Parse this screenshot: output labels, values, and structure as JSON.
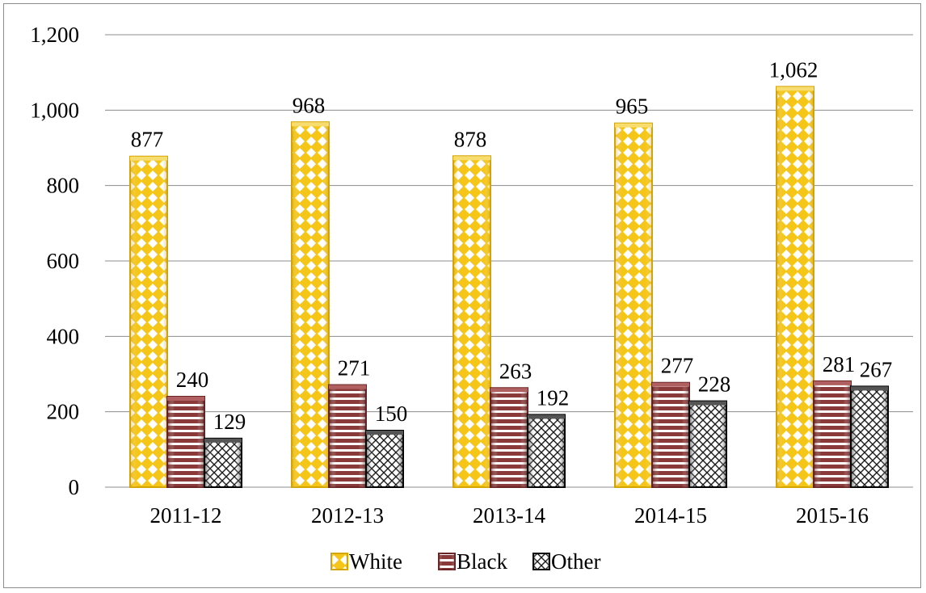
{
  "chart_data": {
    "type": "bar",
    "title": "",
    "xlabel": "",
    "ylabel": "",
    "categories": [
      "2011-12",
      "2012-13",
      "2013-14",
      "2014-15",
      "2015-16"
    ],
    "series": [
      {
        "name": "White",
        "values": [
          877,
          968,
          878,
          965,
          1062
        ],
        "labels": [
          "877",
          "968",
          "878",
          "965",
          "1,062"
        ],
        "color": "#F5C518",
        "pattern": "diamond-checker"
      },
      {
        "name": "Black",
        "values": [
          240,
          271,
          263,
          277,
          281
        ],
        "labels": [
          "240",
          "271",
          "263",
          "277",
          "281"
        ],
        "color": "#8B3A3A",
        "pattern": "horizontal-stripes"
      },
      {
        "name": "Other",
        "values": [
          129,
          150,
          192,
          228,
          267
        ],
        "labels": [
          "129",
          "150",
          "192",
          "228",
          "267"
        ],
        "color": "#1A1A1A",
        "pattern": "cross-hatch"
      }
    ],
    "ylim": [
      0,
      1200
    ],
    "yticks": [
      0,
      200,
      400,
      600,
      800,
      1000,
      1200
    ],
    "ytick_labels": [
      "0",
      "200",
      "400",
      "600",
      "800",
      "1,000",
      "1,200"
    ],
    "grid": true,
    "legend_position": "bottom"
  }
}
